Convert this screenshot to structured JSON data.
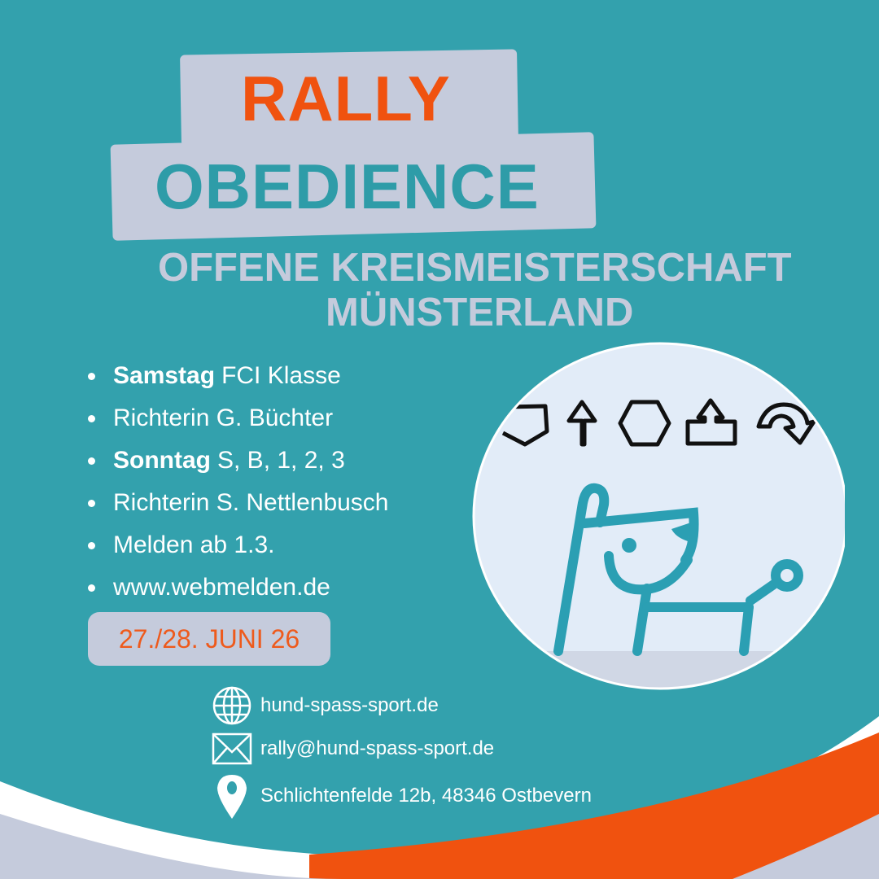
{
  "title": {
    "line1": "RALLY",
    "line2": "OBEDIENCE"
  },
  "subtitle": {
    "line1": "OFFENE KREISMEISTERSCHAFT",
    "line2": "MÜNSTERLAND"
  },
  "details": [
    {
      "bold": "Samstag",
      "text": "FCI Klasse"
    },
    {
      "bold": "",
      "text": "Richterin G. Büchter"
    },
    {
      "bold": "Sonntag",
      "text": "S, B, 1, 2, 3"
    },
    {
      "bold": "",
      "text": "Richterin S. Nettlenbusch"
    },
    {
      "bold": "",
      "text": "Melden ab 1.3."
    },
    {
      "bold": "",
      "text": "www.webmelden.de"
    }
  ],
  "date": "27./28. JUNI 26",
  "contact": {
    "website": "hund-spass-sport.de",
    "email": "rally@hund-spass-sport.de",
    "address": "Schlichtenfelde 12b, 48346 Ostbevern"
  },
  "colors": {
    "teal": "#33a1ad",
    "lavender": "#c5cbdc",
    "orange": "#f0520f",
    "dog": "#2b9fb3"
  },
  "icons": [
    "globe-icon",
    "envelope-icon",
    "location-pin-icon",
    "rally-sign-icons",
    "dog-illustration"
  ]
}
